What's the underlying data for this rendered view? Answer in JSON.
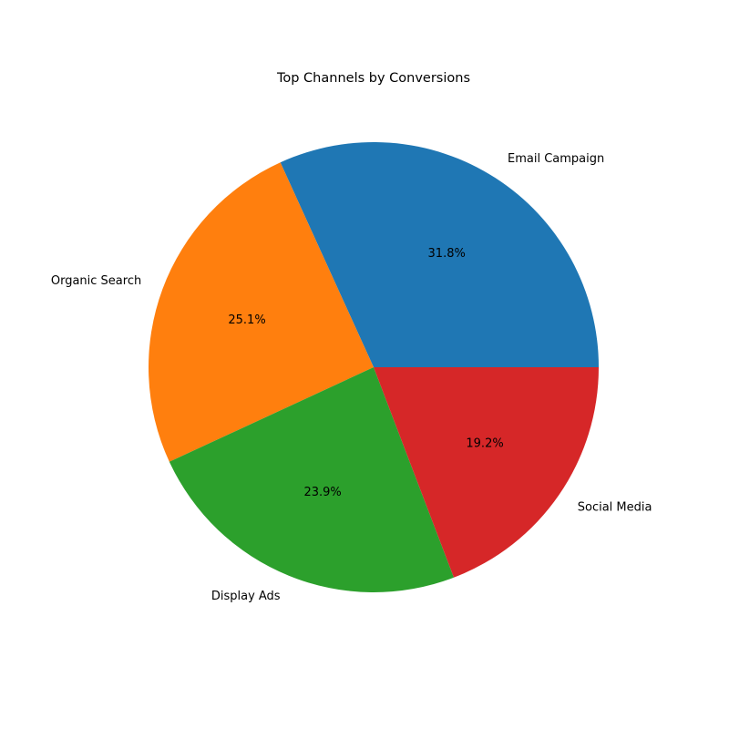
{
  "chart_data": {
    "type": "pie",
    "title": "Top Channels by Conversions",
    "labels": [
      "Email Campaign",
      "Organic Search",
      "Display Ads",
      "Social Media"
    ],
    "values": [
      31.8,
      25.1,
      23.9,
      19.2
    ],
    "pct_labels": [
      "31.8%",
      "25.1%",
      "23.9%",
      "19.2%"
    ],
    "colors": [
      "#1f77b4",
      "#ff7f0e",
      "#2ca02c",
      "#d62728"
    ],
    "start_angle": 0,
    "direction": "counterclockwise",
    "legend": "none"
  }
}
